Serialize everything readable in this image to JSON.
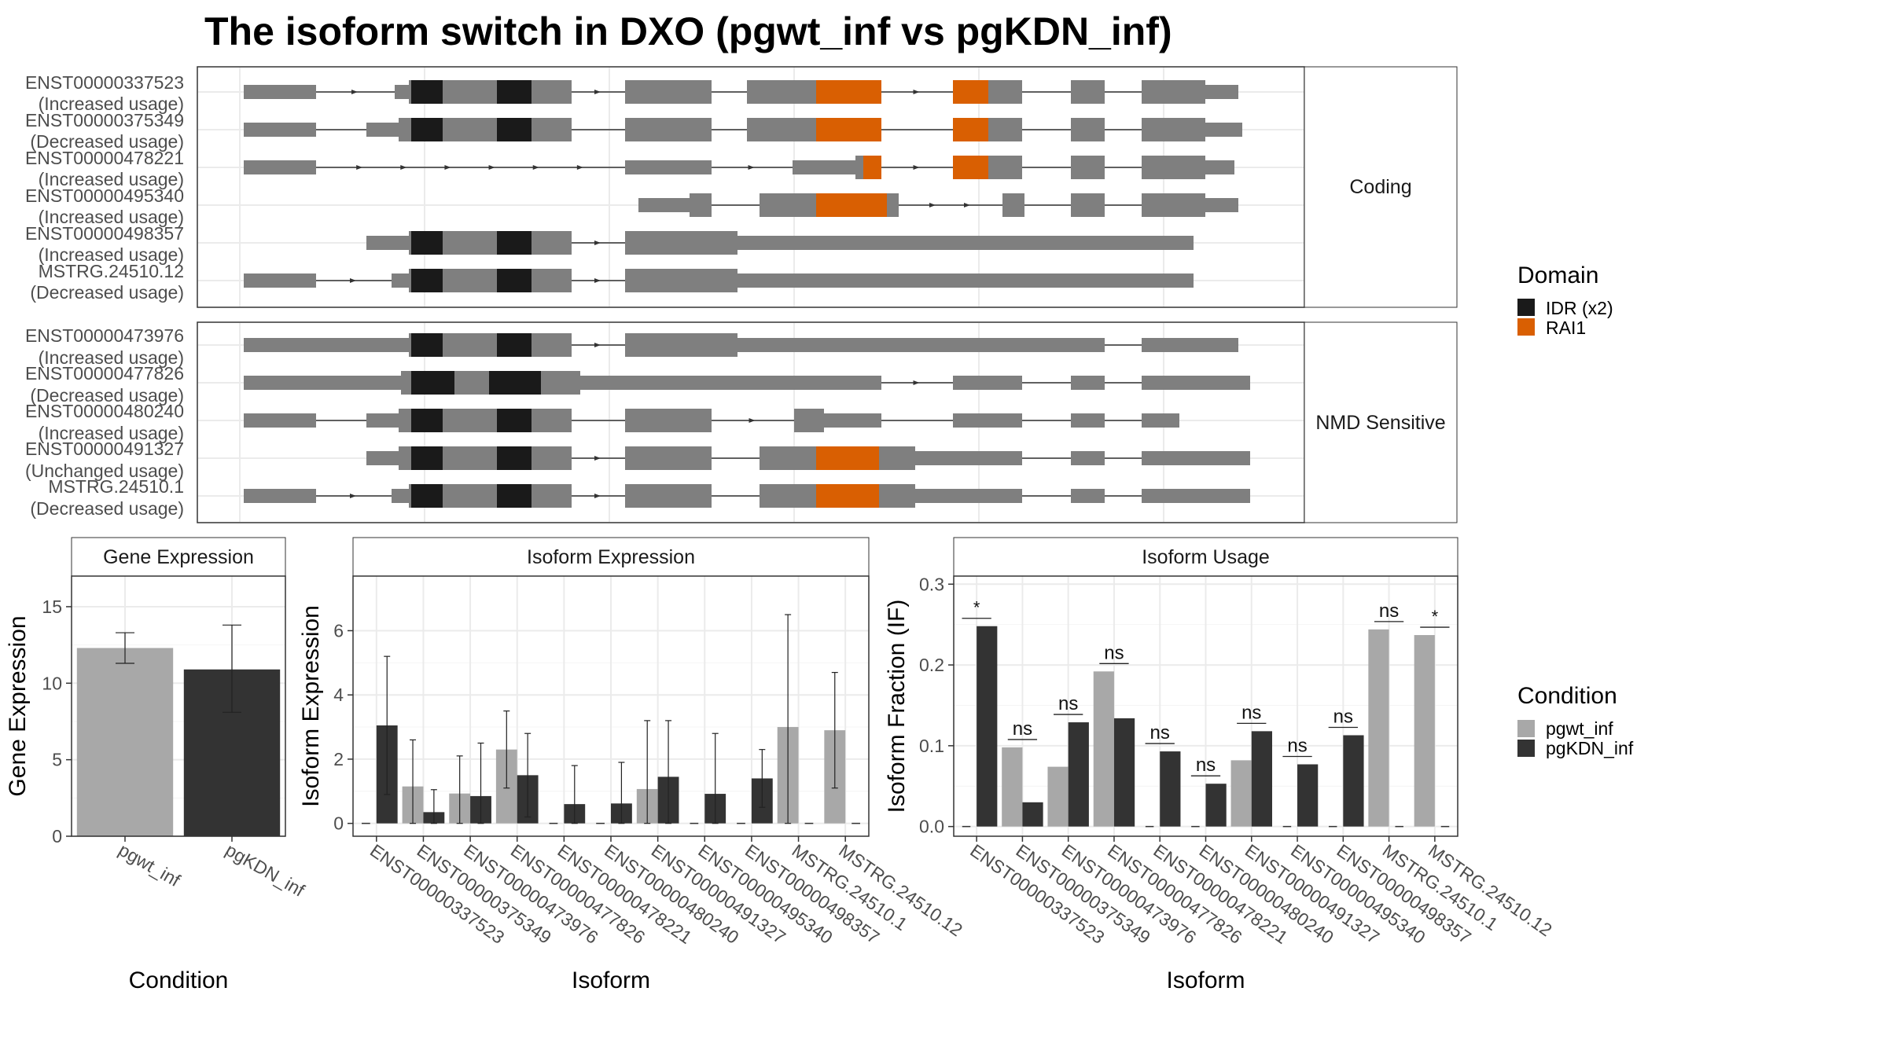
{
  "title": "The isoform switch in DXO (pgwt_inf vs pgKDN_inf)",
  "colors": {
    "exon": "#7f7f7f",
    "idr": "#1a1a1a",
    "rai1": "#d95f02",
    "pgwt": "#a8a8a8",
    "pgkdn": "#333333",
    "grid": "#ebebeb",
    "panel_border": "#333333",
    "strip_border": "#333333"
  },
  "isoform_panels": [
    {
      "label": "Coding",
      "isoforms": [
        {
          "id": "ENST00000337523",
          "usage": "(Increased usage)"
        },
        {
          "id": "ENST00000375349",
          "usage": "(Decreased usage)"
        },
        {
          "id": "ENST00000478221",
          "usage": "(Increased usage)"
        },
        {
          "id": "ENST00000495340",
          "usage": "(Increased usage)"
        },
        {
          "id": "ENST00000498357",
          "usage": "(Increased usage)"
        },
        {
          "id": "MSTRG.24510.12",
          "usage": "(Decreased usage)"
        }
      ]
    },
    {
      "label": "NMD Sensitive",
      "isoforms": [
        {
          "id": "ENST00000473976",
          "usage": "(Increased usage)"
        },
        {
          "id": "ENST00000477826",
          "usage": "(Decreased usage)"
        },
        {
          "id": "ENST00000480240",
          "usage": "(Increased usage)"
        },
        {
          "id": "ENST00000491327",
          "usage": "(Unchanged usage)"
        },
        {
          "id": "MSTRG.24510.1",
          "usage": "(Decreased usage)"
        }
      ]
    }
  ],
  "domain_legend": {
    "title": "Domain",
    "items": [
      {
        "label": "IDR (x2)",
        "color": "#1a1a1a"
      },
      {
        "label": "RAI1",
        "color": "#d95f02"
      }
    ]
  },
  "condition_legend": {
    "title": "Condition",
    "items": [
      {
        "label": "pgwt_inf",
        "color": "#a8a8a8"
      },
      {
        "label": "pgKDN_inf",
        "color": "#333333"
      }
    ]
  },
  "chart_data": [
    {
      "type": "bar",
      "title": "Gene Expression",
      "xlabel": "Condition",
      "ylabel": "Gene Expression",
      "categories": [
        "pgwt_inf",
        "pgKDN_inf"
      ],
      "values": [
        12.3,
        10.9
      ],
      "error_low": [
        11.3,
        8.1
      ],
      "error_high": [
        13.3,
        13.8
      ],
      "ylim": [
        0,
        17
      ],
      "yticks": [
        "0",
        "5",
        "10",
        "15"
      ]
    },
    {
      "type": "bar",
      "title": "Isoform Expression",
      "xlabel": "Isoform",
      "ylabel": "Isoform Expression",
      "categories": [
        "ENST00000337523",
        "ENST00000375349",
        "ENST00000473976",
        "ENST00000477826",
        "ENST00000478221",
        "ENST00000480240",
        "ENST00000491327",
        "ENST00000495340",
        "ENST00000498357",
        "MSTRG.24510.1",
        "MSTRG.24510.12"
      ],
      "series": [
        {
          "name": "pgwt_inf",
          "values": [
            0,
            1.15,
            0.93,
            2.3,
            0,
            0,
            1.07,
            0,
            0,
            3.0,
            2.9
          ],
          "error_high": [
            null,
            2.6,
            2.1,
            3.5,
            null,
            null,
            3.2,
            null,
            null,
            6.5,
            4.7
          ]
        },
        {
          "name": "pgKDN_inf",
          "values": [
            3.05,
            0.35,
            0.85,
            1.5,
            0.6,
            0.62,
            1.45,
            0.92,
            1.4,
            0,
            0
          ],
          "error_high": [
            5.2,
            1.05,
            2.5,
            2.8,
            1.8,
            1.9,
            3.2,
            2.8,
            2.3,
            null,
            null
          ]
        }
      ],
      "ylim": [
        -0.4,
        7.7
      ],
      "yticks": [
        "0",
        "2",
        "4",
        "6"
      ]
    },
    {
      "type": "bar",
      "title": "Isoform Usage",
      "xlabel": "Isoform",
      "ylabel": "Isoform Fraction (IF)",
      "categories": [
        "ENST00000337523",
        "ENST00000375349",
        "ENST00000473976",
        "ENST00000477826",
        "ENST00000478221",
        "ENST00000480240",
        "ENST00000491327",
        "ENST00000495340",
        "ENST00000498357",
        "MSTRG.24510.1",
        "MSTRG.24510.12"
      ],
      "series": [
        {
          "name": "pgwt_inf",
          "values": [
            0,
            0.098,
            0.074,
            0.192,
            0,
            0,
            0.082,
            0,
            0,
            0.244,
            0.237
          ]
        },
        {
          "name": "pgKDN_inf",
          "values": [
            0.248,
            0.03,
            0.129,
            0.134,
            0.093,
            0.053,
            0.118,
            0.077,
            0.113,
            0,
            0
          ]
        }
      ],
      "significance": [
        "*",
        "ns",
        "ns",
        "ns",
        "ns",
        "ns",
        "ns",
        "ns",
        "ns",
        "ns",
        "*"
      ],
      "ylim": [
        -0.012,
        0.31
      ],
      "yticks": [
        "0.0",
        "0.1",
        "0.2",
        "0.3"
      ]
    }
  ]
}
